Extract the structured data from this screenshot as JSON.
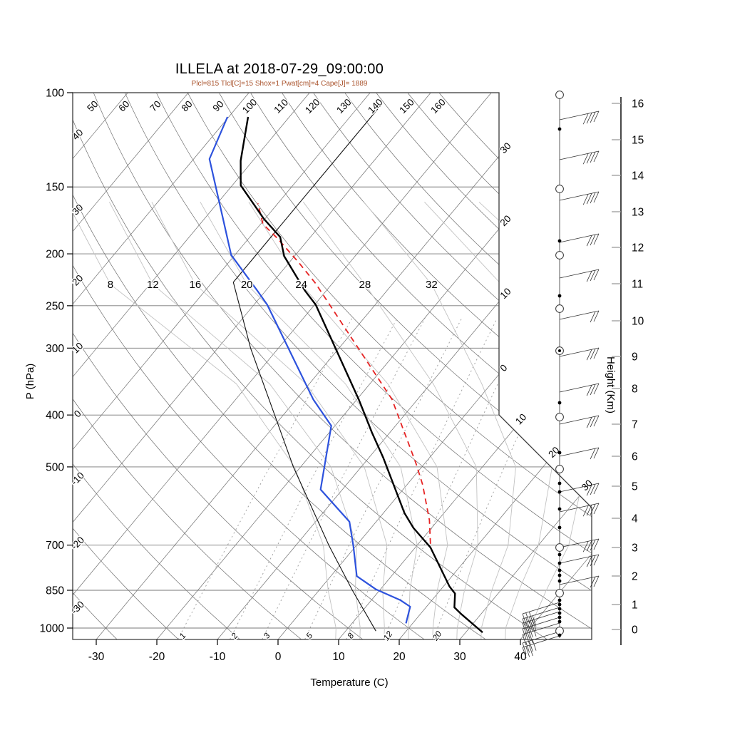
{
  "chart_data": {
    "type": "skewt_logp_sounding",
    "title": "ILLELA at 2018-07-29_09:00:00",
    "subtitle": "Plcl=815 Tlcl[C]=15 Shox=1 Pwat[cm]=4 Cape[J]= 1889",
    "station": "ILLELA",
    "datetime": "2018-07-29_09:00:00",
    "indices": {
      "Plcl": 815,
      "Tlcl_C": 15,
      "Shox": 1,
      "Pwat_cm": 4,
      "Cape_J": 1889
    },
    "axes": {
      "pressure": {
        "title": "P (hPa)",
        "ticks": [
          100,
          150,
          200,
          250,
          300,
          400,
          500,
          700,
          850,
          1000
        ]
      },
      "temperature": {
        "title": "Temperature (C)",
        "ticks": [
          -30,
          -20,
          -10,
          0,
          10,
          20,
          30,
          40
        ]
      },
      "height": {
        "title": "Height (Km)",
        "ticks": [
          [
            16,
            145
          ],
          [
            15,
            196
          ],
          [
            14,
            246
          ],
          [
            13,
            297
          ],
          [
            12,
            347
          ],
          [
            11,
            398
          ],
          [
            10,
            450
          ],
          [
            9,
            500
          ],
          [
            8,
            545
          ],
          [
            7,
            595
          ],
          [
            6,
            640
          ],
          [
            5,
            682
          ],
          [
            4,
            727
          ],
          [
            3,
            768
          ],
          [
            2,
            808
          ],
          [
            1,
            848
          ],
          [
            0,
            883
          ]
        ]
      }
    },
    "grid": {
      "isotherms_C": [
        -120,
        -110,
        -100,
        -90,
        -80,
        -70,
        -60,
        -50,
        -40,
        -30,
        -20,
        -10,
        0,
        10,
        20,
        30,
        40
      ],
      "dry_adiabats_C": [
        -30,
        -20,
        -10,
        0,
        10,
        20,
        30,
        40,
        50,
        60,
        70,
        80,
        90,
        100,
        110,
        120,
        130,
        140,
        150,
        160
      ],
      "moist_adiabats": {
        "pressures": [
          1050,
          1000,
          850,
          700,
          500,
          350,
          228,
          160
        ],
        "curves": [
          {
            "thw": 8,
            "T": [
              9.5,
              8,
              1.5,
              -5.5,
              -21,
              -42,
              -76.5,
              -95
            ]
          },
          {
            "thw": 12,
            "T": [
              13.5,
              12,
              6,
              0,
              -15,
              -36.5,
              -69.5,
              -88
            ]
          },
          {
            "thw": 16,
            "T": [
              17.5,
              16,
              10.5,
              5,
              -9.5,
              -30.5,
              -62.5,
              -81
            ]
          },
          {
            "thw": 20,
            "T": [
              21.5,
              20,
              15,
              10,
              -3.5,
              -24,
              -54,
              -73
            ]
          },
          {
            "thw": 24,
            "T": [
              25.5,
              24,
              19.5,
              15,
              2.5,
              -17,
              -45,
              -65
            ]
          },
          {
            "thw": 28,
            "T": [
              29.5,
              28,
              24,
              20,
              9,
              -9.5,
              -34.5,
              -56
            ]
          },
          {
            "thw": 32,
            "T": [
              33.5,
              32,
              28.5,
              25,
              15.5,
              -1.5,
              -23.5,
              -46
            ]
          },
          {
            "thw": 36,
            "T": [
              37.5,
              36,
              33,
              30,
              21.5,
              6,
              -12,
              -36
            ]
          },
          {
            "thw": 40,
            "T": [
              41.5,
              40,
              37.5,
              35,
              27,
              13.5,
              -1,
              -27
            ]
          }
        ],
        "labeled": [
          8,
          12,
          16,
          20,
          24,
          28,
          32
        ],
        "label_pressure": 228
      },
      "mixing_ratio_gkg": [
        1,
        2,
        3,
        5,
        8,
        12,
        20
      ],
      "dry_adiabat_top_labels": [
        50,
        60,
        70,
        80,
        90,
        100,
        110,
        120,
        130,
        140,
        150,
        160
      ],
      "dry_adiabat_left_labels": [
        40,
        30,
        20,
        10,
        0,
        -10,
        -20,
        -30
      ],
      "isotherm_right_labels_upper": [
        {
          "T": -30,
          "text": "30"
        },
        {
          "T": -20,
          "text": "20"
        },
        {
          "T": -10,
          "text": "10"
        },
        {
          "T": 0,
          "text": "0"
        }
      ],
      "isotherm_right_labels_diag": [
        {
          "T": 10,
          "text": "10"
        },
        {
          "T": 20,
          "text": "20"
        },
        {
          "T": 30,
          "text": "30"
        }
      ]
    },
    "series": {
      "temperature_pT": [
        [
          1019,
          32.8
        ],
        [
          941,
          26.7
        ],
        [
          915,
          24.7
        ],
        [
          862,
          22.9
        ],
        [
          836,
          21
        ],
        [
          707,
          12.5
        ],
        [
          650,
          7
        ],
        [
          610,
          3.5
        ],
        [
          480,
          -7.7
        ],
        [
          431,
          -13
        ],
        [
          374,
          -19.7
        ],
        [
          249,
          -39.8
        ],
        [
          234,
          -43.6
        ],
        [
          202,
          -51.7
        ],
        [
          186,
          -55
        ],
        [
          172,
          -60.2
        ],
        [
          159,
          -64.8
        ],
        [
          149,
          -68.6
        ],
        [
          134,
          -72
        ],
        [
          111,
          -76.8
        ]
      ],
      "dewpoint_pT": [
        [
          980,
          18.9
        ],
        [
          912,
          17.3
        ],
        [
          887,
          14.8
        ],
        [
          847,
          9.3
        ],
        [
          800,
          4.3
        ],
        [
          703,
          -0.4
        ],
        [
          633,
          -4.4
        ],
        [
          551,
          -13.6
        ],
        [
          419,
          -20.6
        ],
        [
          374,
          -27.2
        ],
        [
          249,
          -47.8
        ],
        [
          235,
          -51.2
        ],
        [
          201,
          -60.6
        ],
        [
          170,
          -67.4
        ],
        [
          133,
          -77.4
        ],
        [
          111,
          -80.2
        ]
      ],
      "parcel_pT": [
        [
          696,
          12
        ],
        [
          629,
          8.6
        ],
        [
          540,
          2.6
        ],
        [
          492,
          -1.5
        ],
        [
          374,
          -14.2
        ],
        [
          227,
          -42.8
        ],
        [
          208,
          -48.3
        ],
        [
          187,
          -55.3
        ],
        [
          176,
          -59.6
        ],
        [
          161,
          -63.3
        ]
      ],
      "standard_atmosphere_pT": [
        [
          1013,
          15
        ],
        [
          850,
          5.5
        ],
        [
          700,
          -4.6
        ],
        [
          500,
          -21.2
        ],
        [
          300,
          -44.6
        ],
        [
          226,
          -56.5
        ],
        [
          150,
          -56.5
        ],
        [
          105,
          -56.5
        ]
      ]
    },
    "wind_barbs": {
      "staff_x": 785,
      "markers": [
        {
          "y": 133,
          "t": "circle"
        },
        {
          "y": 181,
          "t": "dot"
        },
        {
          "y": 265,
          "t": "circle"
        },
        {
          "y": 338,
          "t": "dot"
        },
        {
          "y": 358,
          "t": "circle"
        },
        {
          "y": 415,
          "t": "dot"
        },
        {
          "y": 433,
          "t": "circle"
        },
        {
          "y": 492,
          "t": "circledot"
        },
        {
          "y": 565,
          "t": "dot"
        },
        {
          "y": 585,
          "t": "circle"
        },
        {
          "y": 635,
          "t": "dot"
        },
        {
          "y": 658,
          "t": "circle"
        },
        {
          "y": 678,
          "t": "dot"
        },
        {
          "y": 690,
          "t": "dot"
        },
        {
          "y": 714,
          "t": "dot"
        },
        {
          "y": 740,
          "t": "dot"
        },
        {
          "y": 768,
          "t": "circle"
        },
        {
          "y": 778,
          "t": "dot"
        },
        {
          "y": 790,
          "t": "dot"
        },
        {
          "y": 800,
          "t": "dot"
        },
        {
          "y": 807,
          "t": "dot"
        },
        {
          "y": 815,
          "t": "dot"
        },
        {
          "y": 832,
          "t": "circle"
        },
        {
          "y": 842,
          "t": "dot"
        },
        {
          "y": 848,
          "t": "dot"
        },
        {
          "y": 854,
          "t": "dot"
        },
        {
          "y": 860,
          "t": "dot"
        },
        {
          "y": 866,
          "t": "dot"
        },
        {
          "y": 872,
          "t": "dot"
        },
        {
          "y": 885,
          "t": "circle"
        },
        {
          "y": 891,
          "t": "dot"
        }
      ],
      "barbs": [
        {
          "y": 168,
          "n": 4,
          "flip": 0
        },
        {
          "y": 224,
          "n": 4,
          "flip": 0
        },
        {
          "y": 281,
          "n": 4,
          "flip": 0
        },
        {
          "y": 340,
          "n": 3,
          "flip": 0
        },
        {
          "y": 390,
          "n": 3,
          "flip": 0
        },
        {
          "y": 448,
          "n": 2,
          "flip": 0
        },
        {
          "y": 500,
          "n": 3,
          "flip": 0
        },
        {
          "y": 550,
          "n": 3,
          "flip": 0
        },
        {
          "y": 595,
          "n": 3,
          "flip": 0
        },
        {
          "y": 640,
          "n": 2,
          "flip": 0
        },
        {
          "y": 690,
          "n": 3,
          "flip": 0
        },
        {
          "y": 718,
          "n": 4,
          "flip": 0
        },
        {
          "y": 768,
          "n": 4,
          "flip": 0
        },
        {
          "y": 790,
          "n": 3,
          "flip": 0
        },
        {
          "y": 820,
          "n": 2,
          "flip": 0
        },
        {
          "y": 845,
          "n": 3,
          "flip": 1
        },
        {
          "y": 852,
          "n": 4,
          "flip": 1
        },
        {
          "y": 858,
          "n": 4,
          "flip": 1
        },
        {
          "y": 866,
          "n": 4,
          "flip": 1
        },
        {
          "y": 874,
          "n": 3,
          "flip": 1
        },
        {
          "y": 886,
          "n": 4,
          "flip": 1
        },
        {
          "y": 892,
          "n": 3,
          "flip": 1
        }
      ]
    },
    "colors": {
      "temperature": "#000000",
      "dewpoint": "#2d52dd",
      "parcel": "#e62222",
      "standard_atmosphere": "#111111",
      "subtitle": "#a9522b",
      "grid_dark": "#6e6e6e",
      "grid_light": "#c2c2c2",
      "mixing": "#9a9a9a",
      "border": "#3a3a3a"
    }
  }
}
